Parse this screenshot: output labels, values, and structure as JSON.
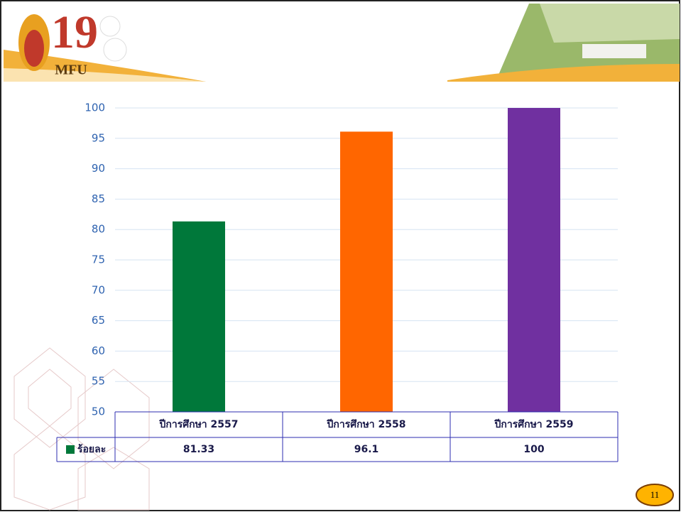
{
  "logo": {
    "number": "19",
    "text": "MFU"
  },
  "page_number": "11",
  "chart_data": {
    "type": "bar",
    "categories": [
      "ปีการศึกษา 2557",
      "ปีการศึกษา 2558",
      "ปีการศึกษา 2559"
    ],
    "series": [
      {
        "name": "ร้อยละ",
        "color": "#00783a",
        "point_colors": [
          "#00783a",
          "#ff6600",
          "#7030a0"
        ],
        "values": [
          81.33,
          96.1,
          100
        ]
      }
    ],
    "ylim": [
      50,
      100
    ],
    "yticks": [
      50,
      55,
      60,
      65,
      70,
      75,
      80,
      85,
      90,
      95,
      100
    ],
    "grid": true,
    "data_table": true
  }
}
